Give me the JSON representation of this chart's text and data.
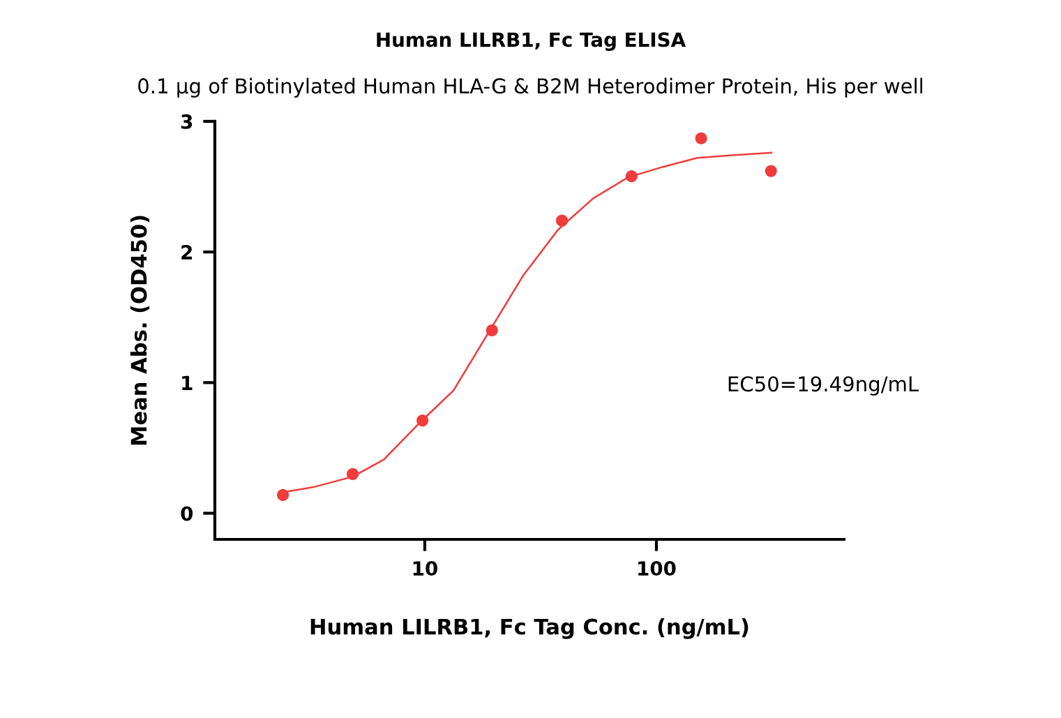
{
  "chart_data": {
    "type": "scatter",
    "title": "Human LILRB1, Fc Tag ELISA",
    "subtitle": "0.1 μg of Biotinylated Human HLA-G & B2M Heterodimer Protein, His per well",
    "xlabel": "Human LILRB1, Fc Tag Conc. (ng/mL)",
    "ylabel": "Mean Abs. (OD450)",
    "log": "x",
    "xlim": [
      1.24,
      646
    ],
    "xticks": [
      10,
      100
    ],
    "ylim": [
      -0.2,
      3
    ],
    "yticks": [
      0,
      1,
      2,
      3
    ],
    "grid": false,
    "series": [
      {
        "marker": "circle",
        "color": "#f03c3c",
        "x": [
          2.44,
          4.88,
          9.77,
          19.5,
          39.1,
          78.1,
          156,
          312.5
        ],
        "values": [
          0.14,
          0.3,
          0.71,
          1.4,
          2.24,
          2.58,
          2.87,
          2.62
        ]
      },
      {
        "type": "line",
        "marker": "none",
        "color": "#f03c3c",
        "line_style": "solid",
        "x": [
          2.44,
          3.31,
          4.88,
          6.64,
          9.6,
          13.3,
          18.8,
          26.6,
          37.6,
          53.3,
          75.2,
          106,
          150,
          213,
          314
        ],
        "values": [
          0.16,
          0.2,
          0.28,
          0.41,
          0.7,
          0.94,
          1.38,
          1.82,
          2.17,
          2.41,
          2.57,
          2.65,
          2.72,
          2.74,
          2.76
        ]
      }
    ],
    "annotations": [
      "EC50=19.49ng/mL"
    ]
  }
}
